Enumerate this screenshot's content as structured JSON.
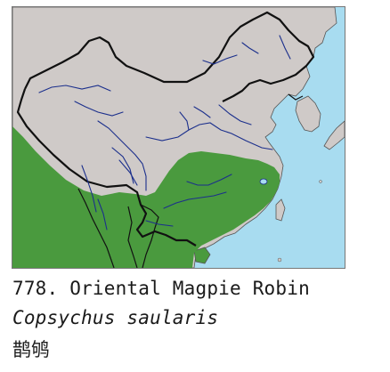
{
  "caption": {
    "number_and_name": "778. Oriental Magpie Robin",
    "scientific_name": "Copsychus saularis",
    "chinese_name": "鹊鸲"
  },
  "map": {
    "range_color": "#4a9a3e",
    "land_color": "#cfcac8",
    "sea_color": "#a8dcf0",
    "border_color": "#111111",
    "river_color": "#1b2f8c",
    "coast_color": "#555555"
  }
}
